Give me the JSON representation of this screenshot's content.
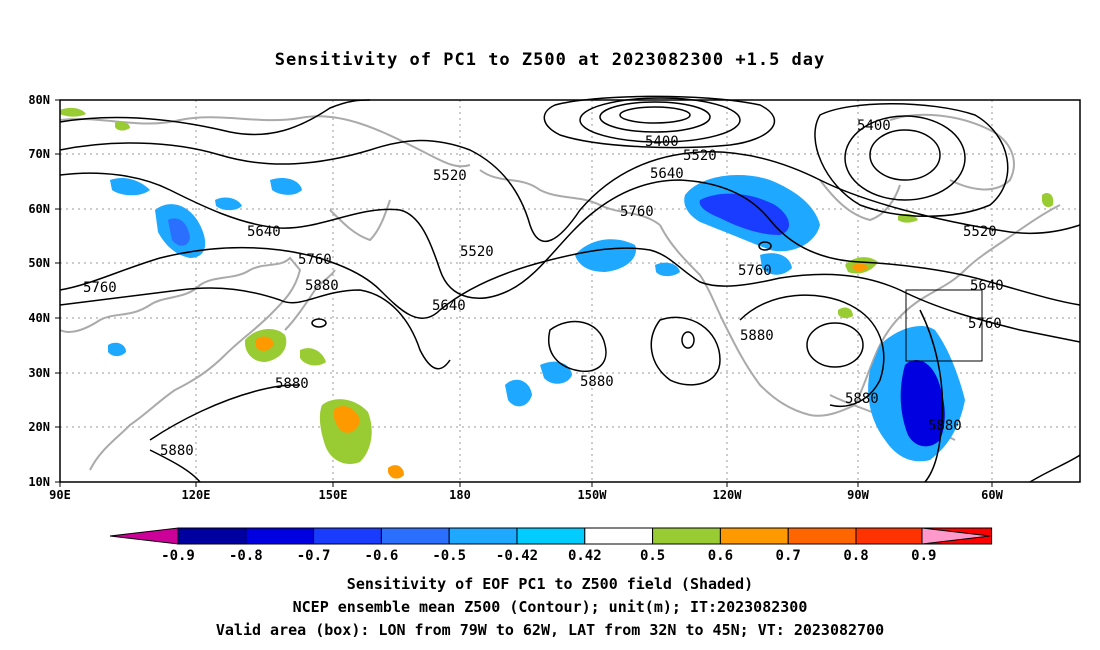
{
  "title": "Sensitivity of PC1 to Z500 at 2023082300 +1.5 day",
  "map": {
    "lat_labels": [
      "80N",
      "70N",
      "60N",
      "50N",
      "40N",
      "30N",
      "20N",
      "10N"
    ],
    "lon_labels": [
      "90E",
      "120E",
      "150E",
      "180",
      "150W",
      "120W",
      "90W",
      "60W"
    ],
    "contour_labels": [
      "5400",
      "5520",
      "5640",
      "5400",
      "5520",
      "5640",
      "5760",
      "5520",
      "5640",
      "5760",
      "5760",
      "5880",
      "5640",
      "5520",
      "5760",
      "5880",
      "5880",
      "5880",
      "5760",
      "5880",
      "5880",
      "5880"
    ],
    "valid_box": {
      "lon_from": "79W",
      "lon_to": "62W",
      "lat_from": "32N",
      "lat_to": "45N"
    }
  },
  "colorbar": {
    "labels": [
      "-0.9",
      "-0.8",
      "-0.7",
      "-0.6",
      "-0.5",
      "-0.42",
      "0.42",
      "0.5",
      "0.6",
      "0.7",
      "0.8",
      "0.9"
    ],
    "colors": [
      "#0000a0",
      "#0000e0",
      "#1a3cff",
      "#2b6fff",
      "#1ea8ff",
      "#00ccff",
      "#ffffff",
      "#99cc33",
      "#ff9900",
      "#ff6600",
      "#ff3300",
      "#ff0000"
    ],
    "low_end_color": "#cc0099",
    "high_end_color": "#ff99cc"
  },
  "caption": {
    "line1": "Sensitivity of EOF PC1 to Z500 field (Shaded)",
    "line2": "NCEP ensemble mean Z500 (Contour); unit(m); IT:2023082300",
    "line3": "Valid area (box): LON from 79W to 62W, LAT from 32N to 45N; VT: 2023082700"
  }
}
